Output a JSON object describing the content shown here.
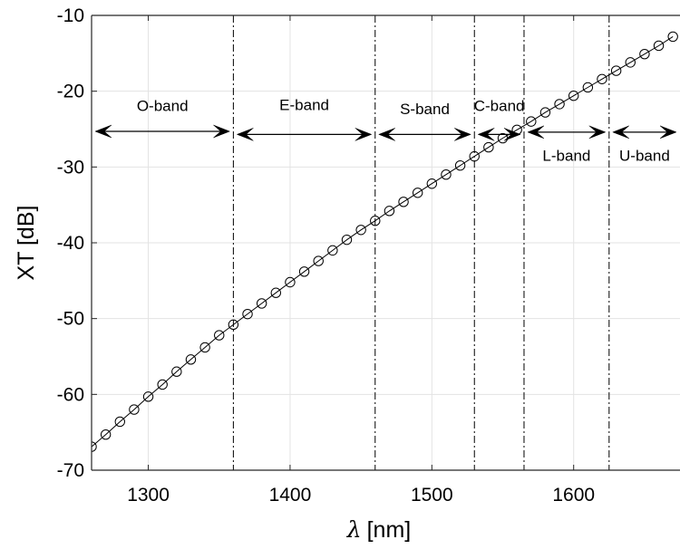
{
  "chart_data": {
    "type": "line",
    "title": "",
    "xlabel_symbol": "λ",
    "xlabel_unit": "[nm]",
    "ylabel": "XT [dB]",
    "xlim": [
      1260,
      1675
    ],
    "ylim": [
      -70,
      -10
    ],
    "xticks": [
      1300,
      1400,
      1500,
      1600
    ],
    "yticks": [
      -10,
      -20,
      -30,
      -40,
      -50,
      -60,
      -70
    ],
    "grid": true,
    "marker": "open-circle",
    "series": [
      {
        "x": [
          1260,
          1270,
          1280,
          1290,
          1300,
          1310,
          1320,
          1330,
          1340,
          1350,
          1360,
          1370,
          1380,
          1390,
          1400,
          1410,
          1420,
          1430,
          1440,
          1450,
          1460,
          1470,
          1480,
          1490,
          1500,
          1510,
          1520,
          1530,
          1540,
          1550,
          1560,
          1570,
          1580,
          1590,
          1600,
          1610,
          1620,
          1630,
          1640,
          1650,
          1660,
          1670
        ],
        "y": [
          -66.9,
          -65.3,
          -63.6,
          -62.0,
          -60.3,
          -58.7,
          -57.0,
          -55.4,
          -53.8,
          -52.2,
          -50.8,
          -49.4,
          -48.0,
          -46.6,
          -45.2,
          -43.8,
          -42.4,
          -41.0,
          -39.6,
          -38.3,
          -37.1,
          -35.8,
          -34.6,
          -33.4,
          -32.2,
          -31.0,
          -29.8,
          -28.6,
          -27.4,
          -26.2,
          -25.1,
          -24.0,
          -22.8,
          -21.7,
          -20.6,
          -19.5,
          -18.4,
          -17.3,
          -16.2,
          -15.1,
          -14.0,
          -12.8
        ]
      }
    ],
    "band_boundaries": [
      1260,
      1360,
      1460,
      1530,
      1565,
      1625,
      1675
    ],
    "bands": [
      {
        "name": "O-band",
        "start": 1260,
        "end": 1360,
        "arrow_y": -25.3,
        "label_y": -22.6
      },
      {
        "name": "E-band",
        "start": 1360,
        "end": 1460,
        "arrow_y": -25.7,
        "label_y": -22.5
      },
      {
        "name": "S-band",
        "start": 1460,
        "end": 1530,
        "arrow_y": -25.7,
        "label_y": -23.0
      },
      {
        "name": "C-band",
        "start": 1530,
        "end": 1565,
        "arrow_y": -25.7,
        "label_y": -22.6
      },
      {
        "name": "L-band",
        "start": 1565,
        "end": 1625,
        "arrow_y": -25.4,
        "label_y": -29.2
      },
      {
        "name": "U-band",
        "start": 1625,
        "end": 1675,
        "arrow_y": -25.4,
        "label_y": -29.2
      }
    ]
  }
}
